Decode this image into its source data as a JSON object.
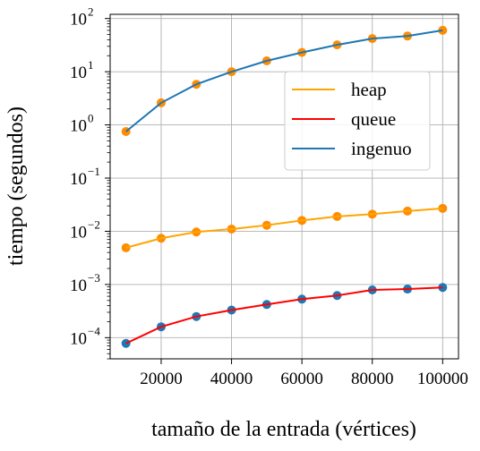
{
  "chart_data": {
    "type": "line",
    "xlabel": "tamaño de la entrada (vértices)",
    "ylabel": "tiempo (segundos)",
    "yscale": "log",
    "xlim": [
      5500,
      104500
    ],
    "ylim": [
      4e-05,
      120
    ],
    "x_ticks": [
      20000,
      40000,
      60000,
      80000,
      100000
    ],
    "y_ticks": [
      {
        "value": 0.0001,
        "label": "10",
        "exp": "−4"
      },
      {
        "value": 0.001,
        "label": "10",
        "exp": "−3"
      },
      {
        "value": 0.01,
        "label": "10",
        "exp": "−2"
      },
      {
        "value": 0.1,
        "label": "10",
        "exp": "−1"
      },
      {
        "value": 1,
        "label": "10",
        "exp": "0"
      },
      {
        "value": 10,
        "label": "10",
        "exp": "1"
      },
      {
        "value": 100,
        "label": "10",
        "exp": "2"
      }
    ],
    "grid": true,
    "legend_position": "top-right",
    "x": [
      10000,
      20000,
      30000,
      40000,
      50000,
      60000,
      70000,
      80000,
      90000,
      100000
    ],
    "series": [
      {
        "name": "heap",
        "color": "#ffa500",
        "marker_color": "#ff8c00",
        "values": [
          0.0049,
          0.0074,
          0.0097,
          0.011,
          0.013,
          0.016,
          0.019,
          0.021,
          0.024,
          0.027
        ]
      },
      {
        "name": "queue",
        "color": "#ff0000",
        "marker_color": "#1f77b4",
        "values": [
          7.8e-05,
          0.00016,
          0.00025,
          0.00033,
          0.00042,
          0.00053,
          0.00062,
          0.00079,
          0.00082,
          0.00088
        ]
      },
      {
        "name": "ingenuo",
        "color": "#1f77b4",
        "marker_color": "#ff8c00",
        "values": [
          0.75,
          2.6,
          5.8,
          10,
          16,
          23,
          32,
          42,
          47,
          60
        ]
      }
    ]
  }
}
